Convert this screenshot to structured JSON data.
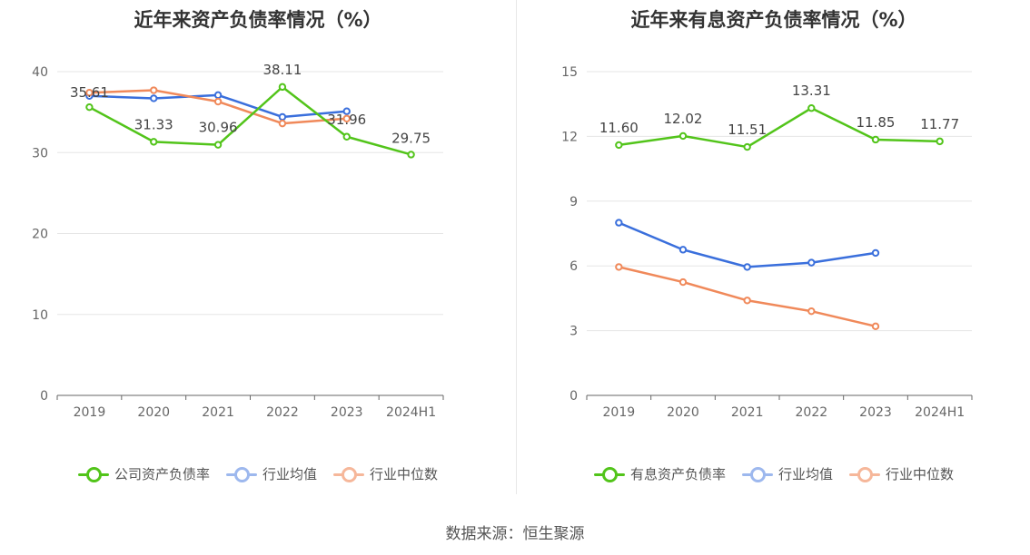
{
  "source_text": "数据来源：恒生聚源",
  "chart_data": [
    {
      "type": "line",
      "title": "近年来资产负债率情况（%）",
      "categories": [
        "2019",
        "2020",
        "2021",
        "2022",
        "2023",
        "2024H1"
      ],
      "ylim": [
        0,
        40
      ],
      "yticks": [
        0,
        10,
        20,
        30,
        40
      ],
      "grid": true,
      "legend_position": "bottom",
      "series": [
        {
          "name": "公司资产负债率",
          "color": "#52c41a",
          "values": [
            35.61,
            31.33,
            30.96,
            38.11,
            31.96,
            29.75
          ],
          "labels": [
            "35.61",
            "31.33",
            "30.96",
            "38.11",
            "31.96",
            "29.75"
          ]
        },
        {
          "name": "行业均值",
          "color": "#3a6fdc",
          "values": [
            37.0,
            36.7,
            37.1,
            34.4,
            35.1,
            null
          ],
          "labels": null
        },
        {
          "name": "行业中位数",
          "color": "#f0895a",
          "values": [
            37.4,
            37.7,
            36.3,
            33.6,
            34.2,
            null
          ],
          "labels": null
        }
      ]
    },
    {
      "type": "line",
      "title": "近年来有息资产负债率情况（%）",
      "categories": [
        "2019",
        "2020",
        "2021",
        "2022",
        "2023",
        "2024H1"
      ],
      "ylim": [
        0,
        15
      ],
      "yticks": [
        0,
        3,
        6,
        9,
        12,
        15
      ],
      "grid": true,
      "legend_position": "bottom",
      "series": [
        {
          "name": "有息资产负债率",
          "color": "#52c41a",
          "values": [
            11.6,
            12.02,
            11.51,
            13.31,
            11.85,
            11.77
          ],
          "labels": [
            "11.60",
            "12.02",
            "11.51",
            "13.31",
            "11.85",
            "11.77"
          ]
        },
        {
          "name": "行业均值",
          "color": "#3a6fdc",
          "values": [
            8.0,
            6.75,
            5.95,
            6.15,
            6.6,
            null
          ],
          "labels": null
        },
        {
          "name": "行业中位数",
          "color": "#f0895a",
          "values": [
            5.95,
            5.25,
            4.4,
            3.9,
            3.2,
            null
          ],
          "labels": null
        }
      ]
    }
  ]
}
